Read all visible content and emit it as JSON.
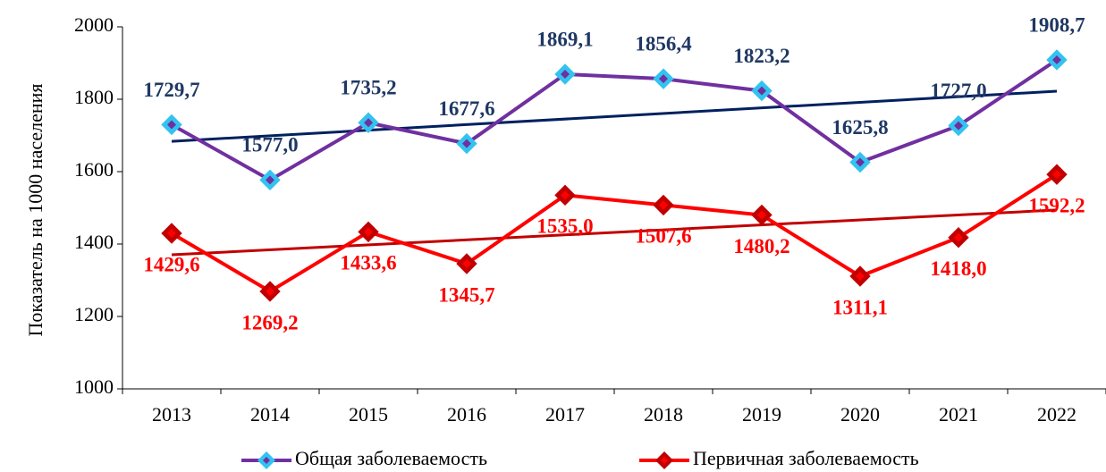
{
  "chart_data": {
    "type": "line",
    "y_label": "Показатель на 1000 населения",
    "categories": [
      "2013",
      "2014",
      "2015",
      "2016",
      "2017",
      "2018",
      "2019",
      "2020",
      "2021",
      "2022"
    ],
    "series": [
      {
        "name": "Общая заболеваемость",
        "color": "#7030a0",
        "marker_color": "#33c3f0",
        "label_color": "#1f3864",
        "trend_color": "#002060",
        "values": [
          1729.7,
          1577.0,
          1735.2,
          1677.6,
          1869.1,
          1856.4,
          1823.2,
          1625.8,
          1727.0,
          1908.7
        ],
        "value_labels": [
          "1729,7",
          "1577,0",
          "1735,2",
          "1677,6",
          "1869,1",
          "1856,4",
          "1823,2",
          "1625,8",
          "1727,0",
          "1908,7"
        ]
      },
      {
        "name": "Первичная заболеваемость",
        "color": "#ff0000",
        "marker_color": "#c00000",
        "label_color": "#ff0000",
        "trend_color": "#c00000",
        "values": [
          1429.6,
          1269.2,
          1433.6,
          1345.7,
          1535.0,
          1507.6,
          1480.2,
          1311.1,
          1418.0,
          1592.2
        ],
        "value_labels": [
          "1429,6",
          "1269,2",
          "1433,6",
          "1345,7",
          "1535,0",
          "1507,6",
          "1480,2",
          "1311,1",
          "1418,0",
          "1592,2"
        ]
      }
    ],
    "ylim": [
      1000,
      2000
    ],
    "yticks": [
      1000,
      1200,
      1400,
      1600,
      1800,
      2000
    ],
    "trendline": true,
    "legend": "bottom",
    "grid": false
  }
}
